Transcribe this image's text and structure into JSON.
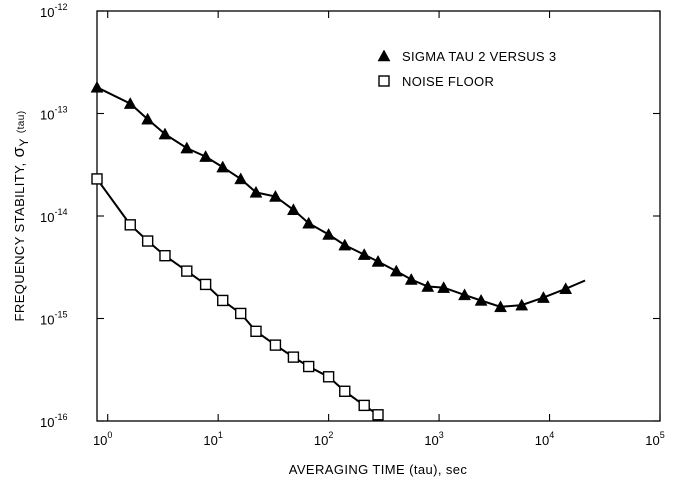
{
  "chart_data": {
    "type": "scatter",
    "xlabel": "AVERAGING TIME (tau), sec",
    "ylabel": "FREQUENCY STABILITY, σY (tau)",
    "ylabel_parts": {
      "prefix": "FREQUENCY STABILITY,",
      "sigma": "σ",
      "sub": "Y",
      "suffix": "(tau)"
    },
    "x_scale": "log",
    "y_scale": "log",
    "xlim": [
      0.8,
      100000
    ],
    "ylim": [
      1e-16,
      1e-12
    ],
    "grid": false,
    "legend_position": "top-right",
    "x_ticks": [
      {
        "value": 1,
        "base": "10",
        "exp": "0"
      },
      {
        "value": 10,
        "base": "10",
        "exp": "1"
      },
      {
        "value": 100,
        "base": "10",
        "exp": "2"
      },
      {
        "value": 1000,
        "base": "10",
        "exp": "3"
      },
      {
        "value": 10000,
        "base": "10",
        "exp": "4"
      },
      {
        "value": 100000,
        "base": "10",
        "exp": "5"
      }
    ],
    "y_ticks": [
      {
        "value": 1e-12,
        "base": "10",
        "exp": "-12"
      },
      {
        "value": 1e-13,
        "base": "10",
        "exp": "-13"
      },
      {
        "value": 1e-14,
        "base": "10",
        "exp": "-14"
      },
      {
        "value": 1e-15,
        "base": "10",
        "exp": "-15"
      },
      {
        "value": 1e-16,
        "base": "10",
        "exp": "-16"
      }
    ],
    "series": [
      {
        "name": "SIGMA TAU 2 VERSUS 3",
        "marker": "triangle",
        "x": [
          0.8,
          1.6,
          2.3,
          3.3,
          5.2,
          7.7,
          11,
          16,
          22,
          33,
          48,
          66,
          100,
          140,
          210,
          280,
          410,
          560,
          790,
          1100,
          1700,
          2400,
          3600,
          5600,
          8800,
          14000
        ],
        "y": [
          1.8e-13,
          1.25e-13,
          8.8e-14,
          6.3e-14,
          4.6e-14,
          3.8e-14,
          3e-14,
          2.3e-14,
          1.7e-14,
          1.55e-14,
          1.15e-14,
          8.5e-15,
          6.6e-15,
          5.2e-15,
          4.2e-15,
          3.6e-15,
          2.9e-15,
          2.4e-15,
          2.05e-15,
          2e-15,
          1.7e-15,
          1.5e-15,
          1.3e-15,
          1.35e-15,
          1.6e-15,
          1.95e-15
        ],
        "line_x": [
          0.8,
          1.6,
          2.3,
          3.3,
          5.2,
          7.7,
          11,
          16,
          22,
          33,
          48,
          66,
          100,
          140,
          210,
          280,
          410,
          560,
          790,
          1100,
          1700,
          2400,
          3600,
          5600,
          8800,
          14000,
          21000
        ],
        "line_y": [
          1.8e-13,
          1.25e-13,
          8.8e-14,
          6.3e-14,
          4.6e-14,
          3.8e-14,
          3e-14,
          2.3e-14,
          1.7e-14,
          1.55e-14,
          1.15e-14,
          8.5e-15,
          6.6e-15,
          5.2e-15,
          4.2e-15,
          3.6e-15,
          2.9e-15,
          2.4e-15,
          2.05e-15,
          2e-15,
          1.7e-15,
          1.5e-15,
          1.3e-15,
          1.35e-15,
          1.6e-15,
          1.95e-15,
          2.35e-15
        ]
      },
      {
        "name": "NOISE FLOOR",
        "marker": "square",
        "x": [
          0.8,
          1.6,
          2.3,
          3.3,
          5.2,
          7.7,
          11,
          16,
          22,
          33,
          48,
          66,
          100,
          140,
          210,
          280
        ],
        "y": [
          2.3e-14,
          8.2e-15,
          5.7e-15,
          4.1e-15,
          2.9e-15,
          2.15e-15,
          1.5e-15,
          1.12e-15,
          7.5e-16,
          5.5e-16,
          4.2e-16,
          3.4e-16,
          2.7e-16,
          1.95e-16,
          1.42e-16,
          1.15e-16
        ],
        "line_x": [
          0.8,
          1.6,
          2.3,
          3.3,
          5.2,
          7.7,
          11,
          16,
          22,
          33,
          48,
          66,
          100,
          140,
          210,
          280
        ],
        "line_y": [
          2.3e-14,
          8.2e-15,
          5.7e-15,
          4.1e-15,
          2.9e-15,
          2.15e-15,
          1.5e-15,
          1.12e-15,
          7.5e-16,
          5.5e-16,
          4.2e-16,
          3.4e-16,
          2.7e-16,
          1.95e-16,
          1.42e-16,
          1.15e-16
        ]
      }
    ]
  }
}
